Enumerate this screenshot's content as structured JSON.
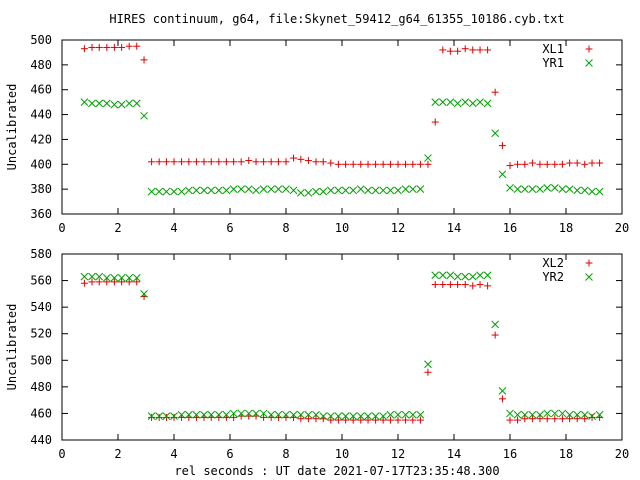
{
  "figure": {
    "title": "HIRES continuum, g64, file:Skynet_59412_g64_61355_10186.cyb.txt",
    "xlabel": "rel seconds : UT date 2021-07-17T23:35:48.300"
  },
  "chart_data": [
    {
      "type": "scatter",
      "title": "",
      "xlabel": "",
      "ylabel": "Uncalibrated",
      "xlim": [
        0,
        20
      ],
      "ylim": [
        360,
        500
      ],
      "xticks": [
        0,
        2,
        4,
        6,
        8,
        10,
        12,
        14,
        16,
        18,
        20
      ],
      "yticks": [
        360,
        380,
        400,
        420,
        440,
        460,
        480,
        500
      ],
      "legend": "top-right",
      "grid": false,
      "series": [
        {
          "name": "XL1",
          "marker": "plus",
          "color": "#e00000",
          "x": [
            0.8,
            1.07,
            1.33,
            1.6,
            1.87,
            2.13,
            2.4,
            2.67,
            2.93,
            3.2,
            3.47,
            3.73,
            4.0,
            4.27,
            4.53,
            4.8,
            5.07,
            5.33,
            5.6,
            5.87,
            6.13,
            6.4,
            6.67,
            6.93,
            7.2,
            7.47,
            7.73,
            8.0,
            8.27,
            8.53,
            8.8,
            9.07,
            9.33,
            9.6,
            9.87,
            10.13,
            10.4,
            10.67,
            10.93,
            11.2,
            11.47,
            11.73,
            12.0,
            12.27,
            12.53,
            12.8,
            13.07,
            13.33,
            13.6,
            13.87,
            14.13,
            14.4,
            14.67,
            14.93,
            15.2,
            15.47,
            15.73,
            16.0,
            16.27,
            16.53,
            16.8,
            17.07,
            17.33,
            17.6,
            17.87,
            18.13,
            18.4,
            18.67,
            18.93,
            19.2
          ],
          "y": [
            493,
            494,
            494,
            494,
            494,
            494,
            495,
            495,
            484,
            402,
            402,
            402,
            402,
            402,
            402,
            402,
            402,
            402,
            402,
            402,
            402,
            402,
            403,
            402,
            402,
            402,
            402,
            402,
            405,
            404,
            403,
            402,
            402,
            401,
            400,
            400,
            400,
            400,
            400,
            400,
            400,
            400,
            400,
            400,
            400,
            400,
            400,
            434,
            492,
            491,
            491,
            493,
            492,
            492,
            492,
            458,
            415,
            399,
            400,
            400,
            401,
            400,
            400,
            400,
            400,
            401,
            401,
            400,
            401,
            401
          ],
          "y_rounding_note": ""
        },
        {
          "name": "YR1",
          "marker": "cross",
          "color": "#00a000",
          "x": [
            0.8,
            1.07,
            1.33,
            1.6,
            1.87,
            2.13,
            2.4,
            2.67,
            2.93,
            3.2,
            3.47,
            3.73,
            4.0,
            4.27,
            4.53,
            4.8,
            5.07,
            5.33,
            5.6,
            5.87,
            6.13,
            6.4,
            6.67,
            6.93,
            7.2,
            7.47,
            7.73,
            8.0,
            8.27,
            8.53,
            8.8,
            9.07,
            9.33,
            9.6,
            9.87,
            10.13,
            10.4,
            10.67,
            10.93,
            11.2,
            11.47,
            11.73,
            12.0,
            12.27,
            12.53,
            12.8,
            13.07,
            13.33,
            13.6,
            13.87,
            14.13,
            14.4,
            14.67,
            14.93,
            15.2,
            15.47,
            15.73,
            16.0,
            16.27,
            16.53,
            16.8,
            17.07,
            17.33,
            17.6,
            17.87,
            18.13,
            18.4,
            18.67,
            18.93,
            19.2
          ],
          "y": [
            450,
            449,
            449,
            449,
            448,
            448,
            449,
            449,
            439,
            378,
            378,
            378,
            378,
            378,
            379,
            379,
            379,
            379,
            379,
            379,
            380,
            380,
            380,
            379,
            380,
            380,
            380,
            380,
            379,
            377,
            377,
            378,
            378,
            379,
            379,
            379,
            379,
            380,
            379,
            379,
            379,
            379,
            379,
            380,
            380,
            380,
            405,
            450,
            450,
            450,
            449,
            450,
            449,
            450,
            449,
            425,
            392,
            381,
            380,
            380,
            380,
            380,
            381,
            381,
            380,
            380,
            379,
            379,
            378,
            378
          ],
          "y_rounding_note": ""
        }
      ]
    },
    {
      "type": "scatter",
      "title": "",
      "xlabel": "",
      "ylabel": "Uncalibrated",
      "xlim": [
        0,
        20
      ],
      "ylim": [
        440,
        580
      ],
      "xticks": [
        0,
        2,
        4,
        6,
        8,
        10,
        12,
        14,
        16,
        18,
        20
      ],
      "yticks": [
        440,
        460,
        480,
        500,
        520,
        540,
        560,
        580
      ],
      "legend": "top-right",
      "grid": false,
      "series": [
        {
          "name": "XL2",
          "marker": "plus",
          "color": "#e00000",
          "x": [
            0.8,
            1.07,
            1.33,
            1.6,
            1.87,
            2.13,
            2.4,
            2.67,
            2.93,
            3.2,
            3.47,
            3.73,
            4.0,
            4.27,
            4.53,
            4.8,
            5.07,
            5.33,
            5.6,
            5.87,
            6.13,
            6.4,
            6.67,
            6.93,
            7.2,
            7.47,
            7.73,
            8.0,
            8.27,
            8.53,
            8.8,
            9.07,
            9.33,
            9.6,
            9.87,
            10.13,
            10.4,
            10.67,
            10.93,
            11.2,
            11.47,
            11.73,
            12.0,
            12.27,
            12.53,
            12.8,
            13.07,
            13.33,
            13.6,
            13.87,
            14.13,
            14.4,
            14.67,
            14.93,
            15.2,
            15.47,
            15.73,
            16.0,
            16.27,
            16.53,
            16.8,
            17.07,
            17.33,
            17.6,
            17.87,
            18.13,
            18.4,
            18.67,
            18.93,
            19.2
          ],
          "y": [
            558,
            559,
            559,
            559,
            559,
            559,
            559,
            559,
            548,
            457,
            457,
            457,
            457,
            457,
            457,
            457,
            457,
            457,
            457,
            457,
            457,
            458,
            458,
            458,
            457,
            457,
            457,
            457,
            457,
            456,
            456,
            456,
            456,
            455,
            455,
            455,
            455,
            455,
            455,
            455,
            455,
            455,
            455,
            455,
            455,
            455,
            491,
            557,
            557,
            557,
            557,
            557,
            556,
            557,
            556,
            519,
            471,
            455,
            455,
            456,
            456,
            456,
            456,
            456,
            456,
            456,
            456,
            456,
            457,
            457
          ],
          "y_rounding_note": ""
        },
        {
          "name": "YR2",
          "marker": "cross",
          "color": "#00a000",
          "x": [
            0.8,
            1.07,
            1.33,
            1.6,
            1.87,
            2.13,
            2.4,
            2.67,
            2.93,
            3.2,
            3.47,
            3.73,
            4.0,
            4.27,
            4.53,
            4.8,
            5.07,
            5.33,
            5.6,
            5.87,
            6.13,
            6.4,
            6.67,
            6.93,
            7.2,
            7.47,
            7.73,
            8.0,
            8.27,
            8.53,
            8.8,
            9.07,
            9.33,
            9.6,
            9.87,
            10.13,
            10.4,
            10.67,
            10.93,
            11.2,
            11.47,
            11.73,
            12.0,
            12.27,
            12.53,
            12.8,
            13.07,
            13.33,
            13.6,
            13.87,
            14.13,
            14.4,
            14.67,
            14.93,
            15.2,
            15.47,
            15.73,
            16.0,
            16.27,
            16.53,
            16.8,
            17.07,
            17.33,
            17.6,
            17.87,
            18.13,
            18.4,
            18.67,
            18.93,
            19.2
          ],
          "y": [
            563,
            563,
            563,
            562,
            562,
            562,
            562,
            562,
            550,
            458,
            458,
            458,
            458,
            459,
            459,
            459,
            459,
            459,
            459,
            459,
            460,
            460,
            460,
            460,
            460,
            459,
            459,
            459,
            459,
            459,
            459,
            459,
            458,
            458,
            458,
            458,
            458,
            458,
            458,
            458,
            458,
            459,
            459,
            459,
            459,
            459,
            497,
            564,
            564,
            564,
            563,
            563,
            563,
            564,
            564,
            527,
            477,
            460,
            459,
            459,
            459,
            459,
            460,
            460,
            460,
            459,
            459,
            459,
            458,
            459
          ],
          "y_rounding_note": ""
        }
      ]
    }
  ]
}
